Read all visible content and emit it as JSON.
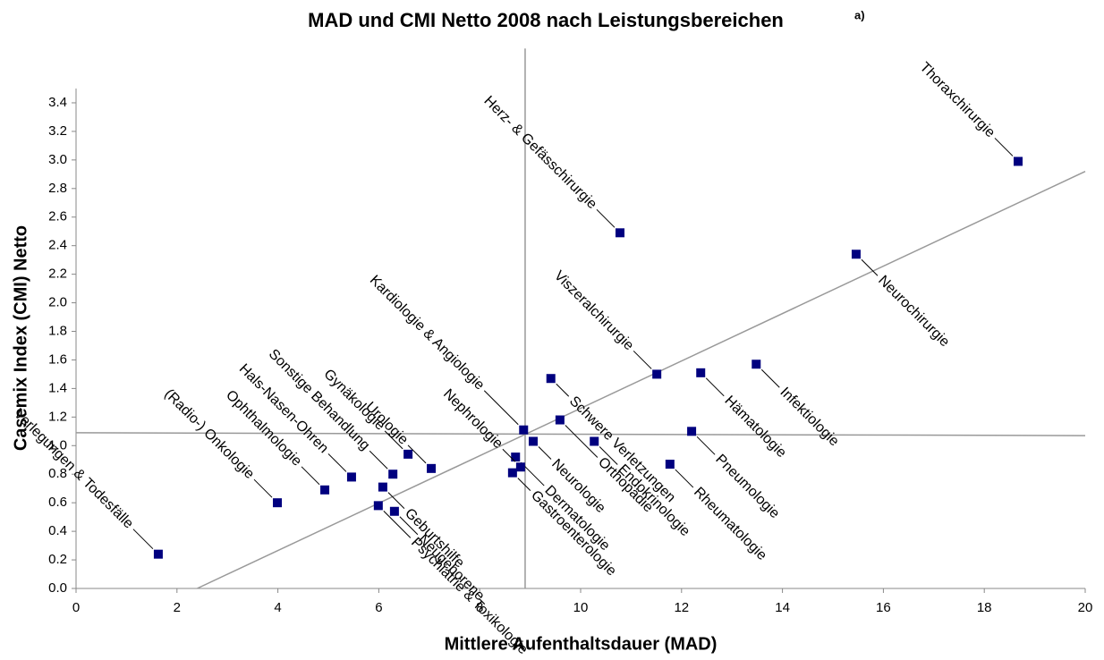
{
  "chart_data": {
    "type": "scatter",
    "title": "MAD und CMI Netto 2008 nach Leistungsbereichen",
    "title_note": "a)",
    "x_label": "Mittlere Aufenthaltsdauer (MAD)",
    "y_label": "Casemix Index (CMI) Netto",
    "xlim": [
      0,
      20
    ],
    "xticks": [
      0,
      2,
      4,
      6,
      8,
      10,
      12,
      14,
      16,
      18,
      20
    ],
    "ylim": [
      0,
      3.5
    ],
    "yticks": [
      {
        "value": 0,
        "label": "0.0"
      },
      0.2,
      0.4,
      0.6,
      0.8,
      {
        "value": 1,
        "label": "1.0"
      },
      1.2,
      1.4,
      1.6,
      1.8,
      {
        "value": 2,
        "label": "2.0"
      },
      2.2,
      2.4,
      2.6,
      2.8,
      {
        "value": 3,
        "label": "3.0"
      },
      3.2,
      3.4
    ],
    "point_labels": [
      "Verlegungen & Todesfälle",
      "(Radio-) Onkologie",
      "Ophthalmologie",
      "Hals-Nasen-Ohren",
      "Sonstige Behandlung",
      "Gynäkologie",
      "Urologie",
      "Geburtshilfe",
      "Neugeborene",
      "Psychiatrie & Toxikologie",
      "Dermatologie",
      "Kardiologie & Angiologie",
      "Nephrologie",
      "Gastroenterologie",
      "Neurologie",
      "Orthopädie",
      "Schwere Verletzungen",
      "Herz- & Gefässchirurgie",
      "Viszeralchirurgie",
      "Hämatologie",
      "Infektiologie",
      "Pneumologie",
      "Endokrinologie",
      "Rheumatologie",
      "Neurochirurgie",
      "Thoraxchirurgie"
    ],
    "x": [
      1.63,
      3.99,
      4.93,
      5.46,
      6.28,
      6.58,
      7.04,
      6.08,
      6.31,
      5.99,
      8.71,
      8.87,
      8.81,
      8.65,
      9.06,
      9.59,
      9.41,
      10.78,
      11.51,
      12.38,
      13.48,
      12.2,
      10.27,
      11.77,
      15.46,
      18.67
    ],
    "series": [
      {
        "color": "#00007f",
        "values": [
          0.24,
          0.6,
          0.69,
          0.78,
          0.8,
          0.94,
          0.84,
          0.71,
          0.54,
          0.58,
          0.92,
          1.11,
          0.85,
          0.81,
          1.03,
          1.18,
          1.47,
          2.49,
          1.5,
          1.51,
          1.57,
          1.1,
          1.03,
          0.87,
          2.34,
          2.99
        ]
      }
    ],
    "reference_lines": [
      {
        "x": [
          2.4,
          20
        ],
        "y": [
          0,
          2.92
        ]
      },
      {
        "x": [
          0,
          20
        ],
        "y": [
          1.09,
          1.07
        ]
      },
      {
        "x": [
          8.9,
          8.9
        ],
        "y": [
          0,
          3.78
        ]
      }
    ]
  }
}
